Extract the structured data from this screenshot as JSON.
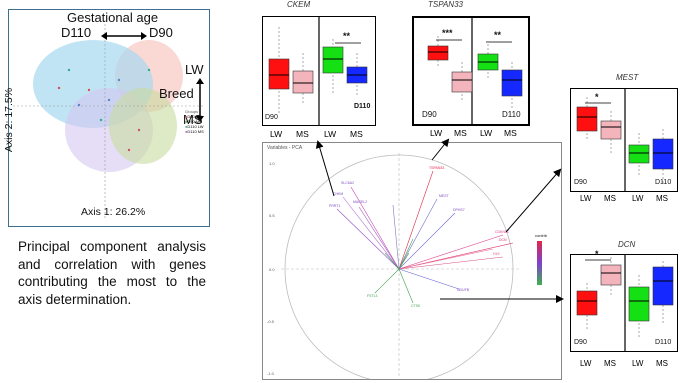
{
  "pca_scatter": {
    "gest_label": "Gestational age",
    "d110": "D110",
    "d90": "D90",
    "lw": "LW",
    "breed": "Breed",
    "ms": "MS",
    "axis2": "Axis 2: 17.5%",
    "axis1": "Axis 1: 26.2%",
    "legend_title": "Groups",
    "legend": [
      "D90 LW",
      "D90 MS",
      "D110 LW",
      "D110 MS"
    ]
  },
  "caption": "Principal component analysis and correlation with genes contributing the most to the axis determination.",
  "boxplots": {
    "ckem": {
      "title": "CKEM",
      "sig": "**",
      "d90": "D90",
      "d110": "D110",
      "xlabels": [
        "LW",
        "MS",
        "LW",
        "MS"
      ]
    },
    "tspan33": {
      "title": "TSPAN33",
      "sig1": "***",
      "sig2": "**",
      "d90": "D90",
      "d110": "D110",
      "xlabels": [
        "LW",
        "MS",
        "LW",
        "MS"
      ]
    },
    "mest": {
      "title": "MEST",
      "sig": "*",
      "d90": "D90",
      "d110": "D110",
      "xlabels": [
        "LW",
        "MS",
        "LW",
        "MS"
      ]
    },
    "dcn": {
      "title": "DCN",
      "sig": "*",
      "d90": "D90",
      "d110": "D110",
      "xlabels": [
        "LW",
        "MS",
        "LW",
        "MS"
      ]
    }
  },
  "var_pca": {
    "title": "Variables - PCA",
    "legend_title": "contrib"
  },
  "colors": {
    "lw90": "#ff1010",
    "ms90": "#f4b4bc",
    "lw110": "#14e014",
    "ms110": "#1428ff"
  }
}
